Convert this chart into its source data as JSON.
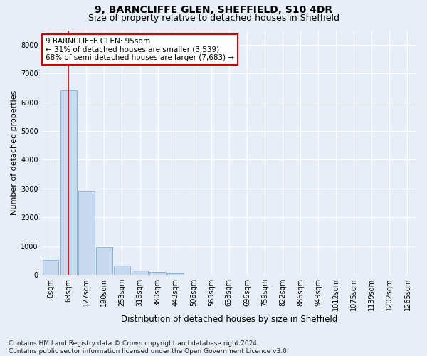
{
  "title_line1": "9, BARNCLIFFE GLEN, SHEFFIELD, S10 4DR",
  "title_line2": "Size of property relative to detached houses in Sheffield",
  "xlabel": "Distribution of detached houses by size in Sheffield",
  "ylabel": "Number of detached properties",
  "footnote": "Contains HM Land Registry data © Crown copyright and database right 2024.\nContains public sector information licensed under the Open Government Licence v3.0.",
  "bar_labels": [
    "0sqm",
    "63sqm",
    "127sqm",
    "190sqm",
    "253sqm",
    "316sqm",
    "380sqm",
    "443sqm",
    "506sqm",
    "569sqm",
    "633sqm",
    "696sqm",
    "759sqm",
    "822sqm",
    "886sqm",
    "949sqm",
    "1012sqm",
    "1075sqm",
    "1139sqm",
    "1202sqm",
    "1265sqm"
  ],
  "bar_heights": [
    520,
    6420,
    2920,
    970,
    330,
    160,
    100,
    60,
    0,
    0,
    0,
    0,
    0,
    0,
    0,
    0,
    0,
    0,
    0,
    0,
    0
  ],
  "bar_color": "#c8d8ee",
  "bar_edge_color": "#7aadd4",
  "property_bin": 1,
  "annotation_title": "9 BARNCLIFFE GLEN: 95sqm",
  "annotation_line2": "← 31% of detached houses are smaller (3,539)",
  "annotation_line3": "68% of semi-detached houses are larger (7,683) →",
  "ylim": [
    0,
    8500
  ],
  "yticks": [
    0,
    1000,
    2000,
    3000,
    4000,
    5000,
    6000,
    7000,
    8000
  ],
  "n_bars": 21,
  "figsize": [
    6.0,
    5.0
  ],
  "dpi": 100,
  "background_color": "#e8eef8",
  "axes_bg_color": "#e8eef8",
  "grid_color": "#ffffff",
  "annotation_box_color": "#ffffff",
  "annotation_box_edge": "#cc0000",
  "red_line_color": "#cc0000",
  "title_fontsize": 10,
  "subtitle_fontsize": 9,
  "ylabel_fontsize": 8,
  "xlabel_fontsize": 8.5,
  "tick_fontsize": 7,
  "annotation_fontsize": 7.5,
  "footnote_fontsize": 6.5
}
